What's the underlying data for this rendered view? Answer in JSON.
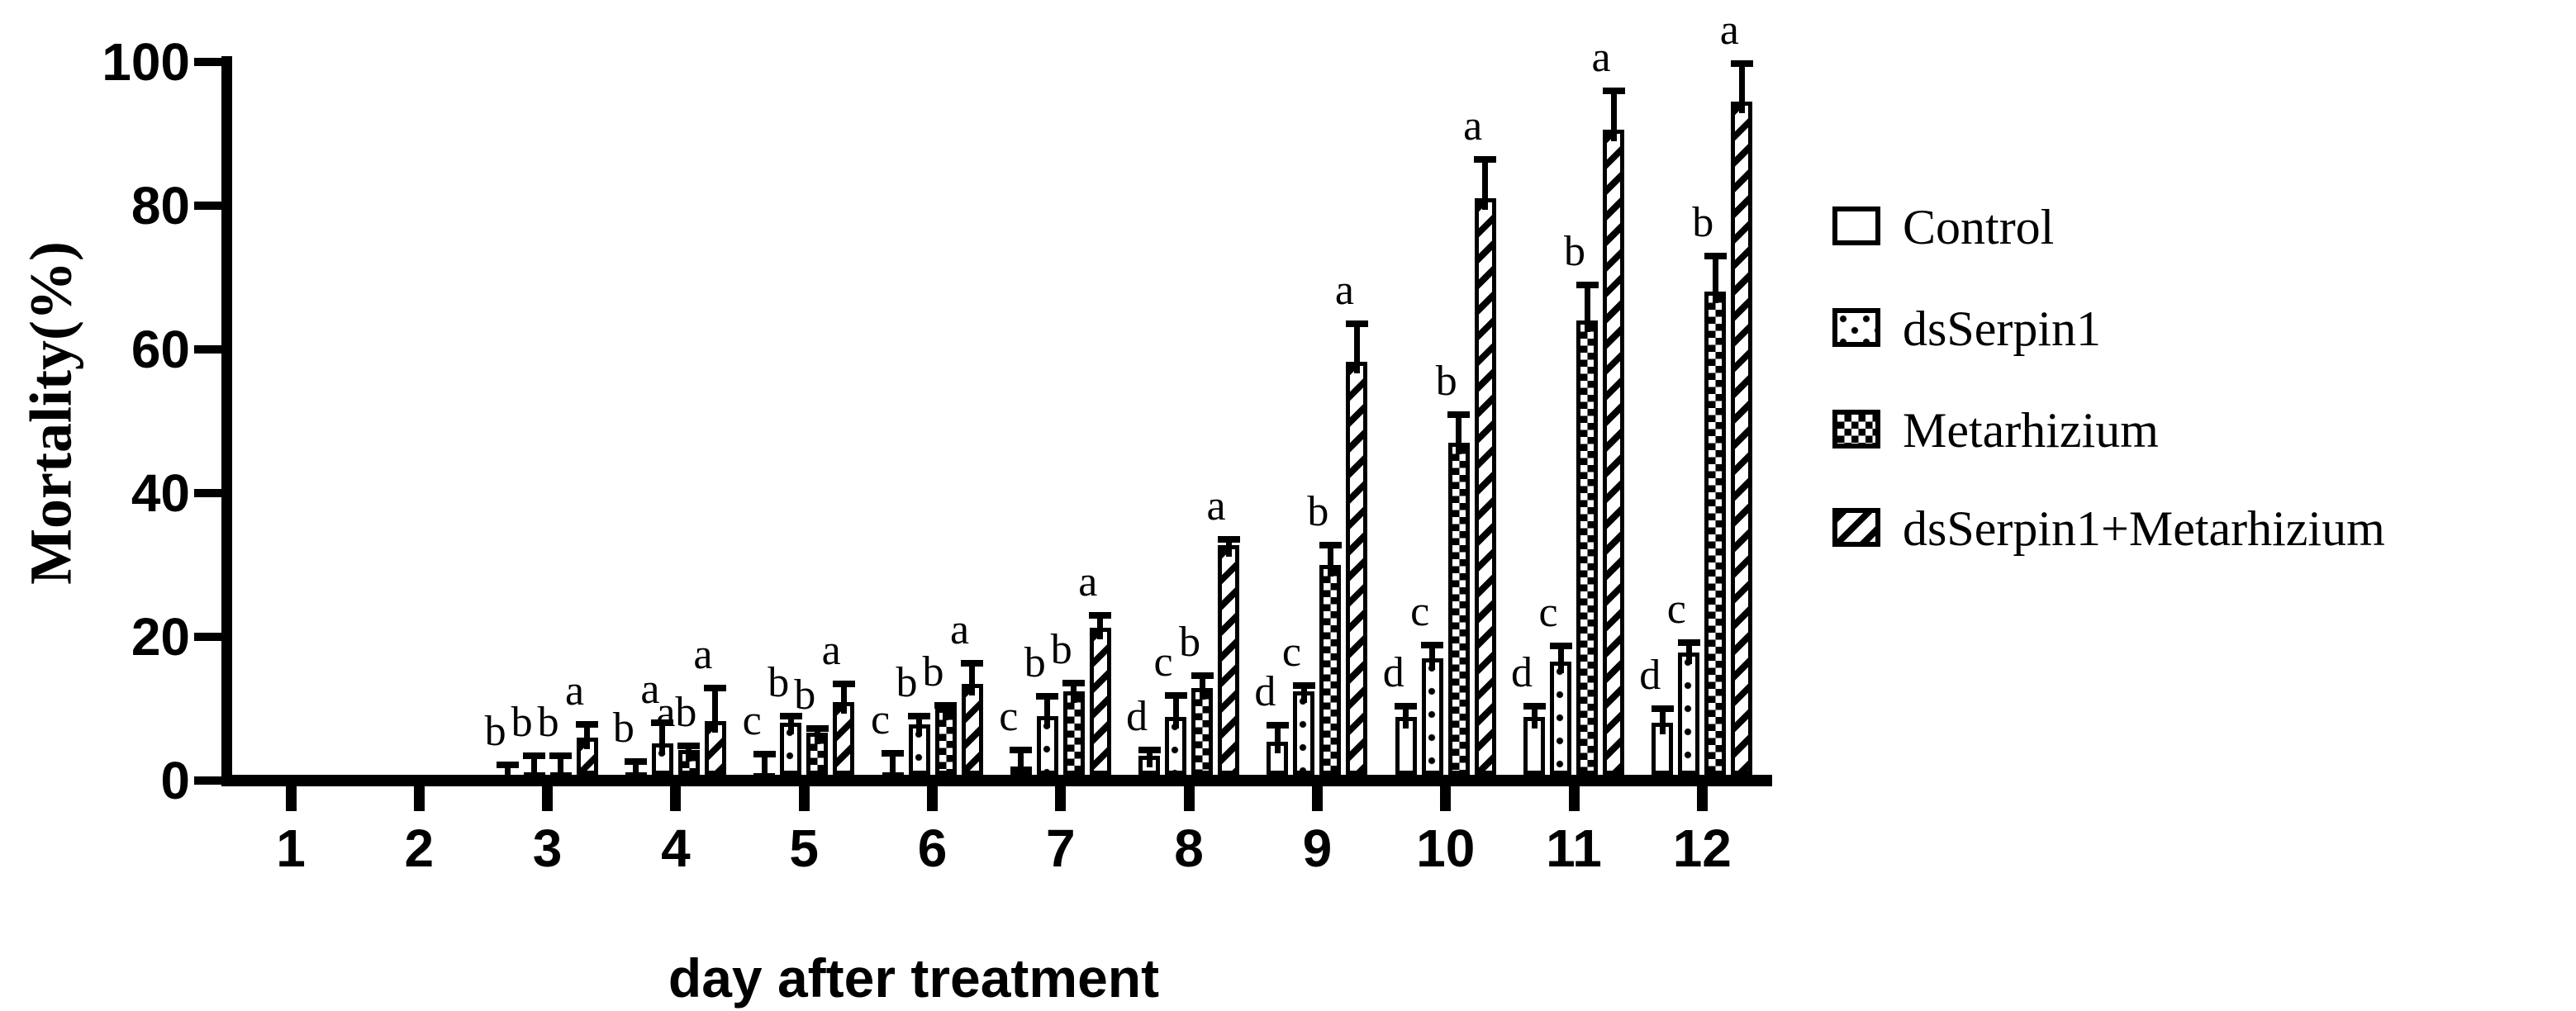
{
  "figure_title": "",
  "axes": {
    "y_label": "Mortality(%)",
    "x_label": "day after treatment"
  },
  "legend": [
    {
      "label": "Control",
      "pattern": "open"
    },
    {
      "label": "dsSerpin1",
      "pattern": "dots"
    },
    {
      "label": "Metarhizium",
      "pattern": "checker"
    },
    {
      "label": "dsSerpin1+Metarhizium",
      "pattern": "stripes"
    }
  ],
  "colors": {
    "foreground": "#000000",
    "background": "#ffffff"
  },
  "chart_data": {
    "type": "bar",
    "title": "",
    "xlabel": "day after treatment",
    "ylabel": "Mortality(%)",
    "ylim": [
      0,
      100
    ],
    "yticks": [
      0,
      20,
      40,
      60,
      80,
      100
    ],
    "grid": false,
    "legend_position": "right",
    "categories": [
      "1",
      "2",
      "3",
      "4",
      "5",
      "6",
      "7",
      "8",
      "9",
      "10",
      "11",
      "12"
    ],
    "series": [
      {
        "name": "Control",
        "pattern": "open",
        "values": [
          0,
          0,
          0.5,
          1.2,
          1.0,
          1.2,
          2.0,
          3.4,
          5.4,
          8.8,
          8.8,
          8.0
        ],
        "errors_top": [
          null,
          null,
          2.2,
          2.6,
          3.7,
          3.8,
          4.3,
          4.2,
          7.7,
          10.3,
          10.3,
          10.0
        ],
        "letters": [
          null,
          null,
          "b",
          "b",
          "c",
          "c",
          "c",
          "d",
          "d",
          "d",
          "d",
          "d"
        ]
      },
      {
        "name": "dsSerpin1",
        "pattern": "dots",
        "values": [
          0,
          0,
          1.2,
          5.2,
          8.0,
          7.8,
          9.0,
          8.9,
          12.4,
          17.0,
          16.5,
          17.8
        ],
        "errors_top": [
          null,
          null,
          3.5,
          8.0,
          9.0,
          9.0,
          11.7,
          11.8,
          13.2,
          18.8,
          18.7,
          19.2
        ],
        "letters": [
          null,
          null,
          "b",
          "a",
          "b",
          "b",
          "b",
          "c",
          "c",
          "c",
          "c",
          "c"
        ]
      },
      {
        "name": "Metarhizium",
        "pattern": "checker",
        "values": [
          0,
          0,
          1.2,
          4.3,
          6.7,
          10.0,
          12.4,
          12.9,
          30.0,
          47.0,
          64.0,
          68.0
        ],
        "errors_top": [
          null,
          null,
          3.5,
          4.8,
          7.2,
          10.5,
          13.6,
          14.6,
          32.8,
          50.9,
          69.0,
          73.0
        ],
        "letters": [
          null,
          null,
          "b",
          "ab",
          "b",
          "b",
          "b",
          "b",
          "b",
          "b",
          "b",
          "b"
        ]
      },
      {
        "name": "dsSerpin1+Metarhizium",
        "pattern": "stripes",
        "values": [
          0,
          0,
          6.0,
          8.3,
          10.9,
          13.4,
          21.3,
          32.8,
          58.3,
          81.0,
          90.6,
          94.5
        ],
        "errors_top": [
          null,
          null,
          7.8,
          12.9,
          13.4,
          16.3,
          23.0,
          33.6,
          63.6,
          86.4,
          96.0,
          99.8
        ],
        "letters": [
          null,
          null,
          "a",
          "a",
          "a",
          "a",
          "a",
          "a",
          "a",
          "a",
          "a",
          "a"
        ]
      }
    ]
  }
}
